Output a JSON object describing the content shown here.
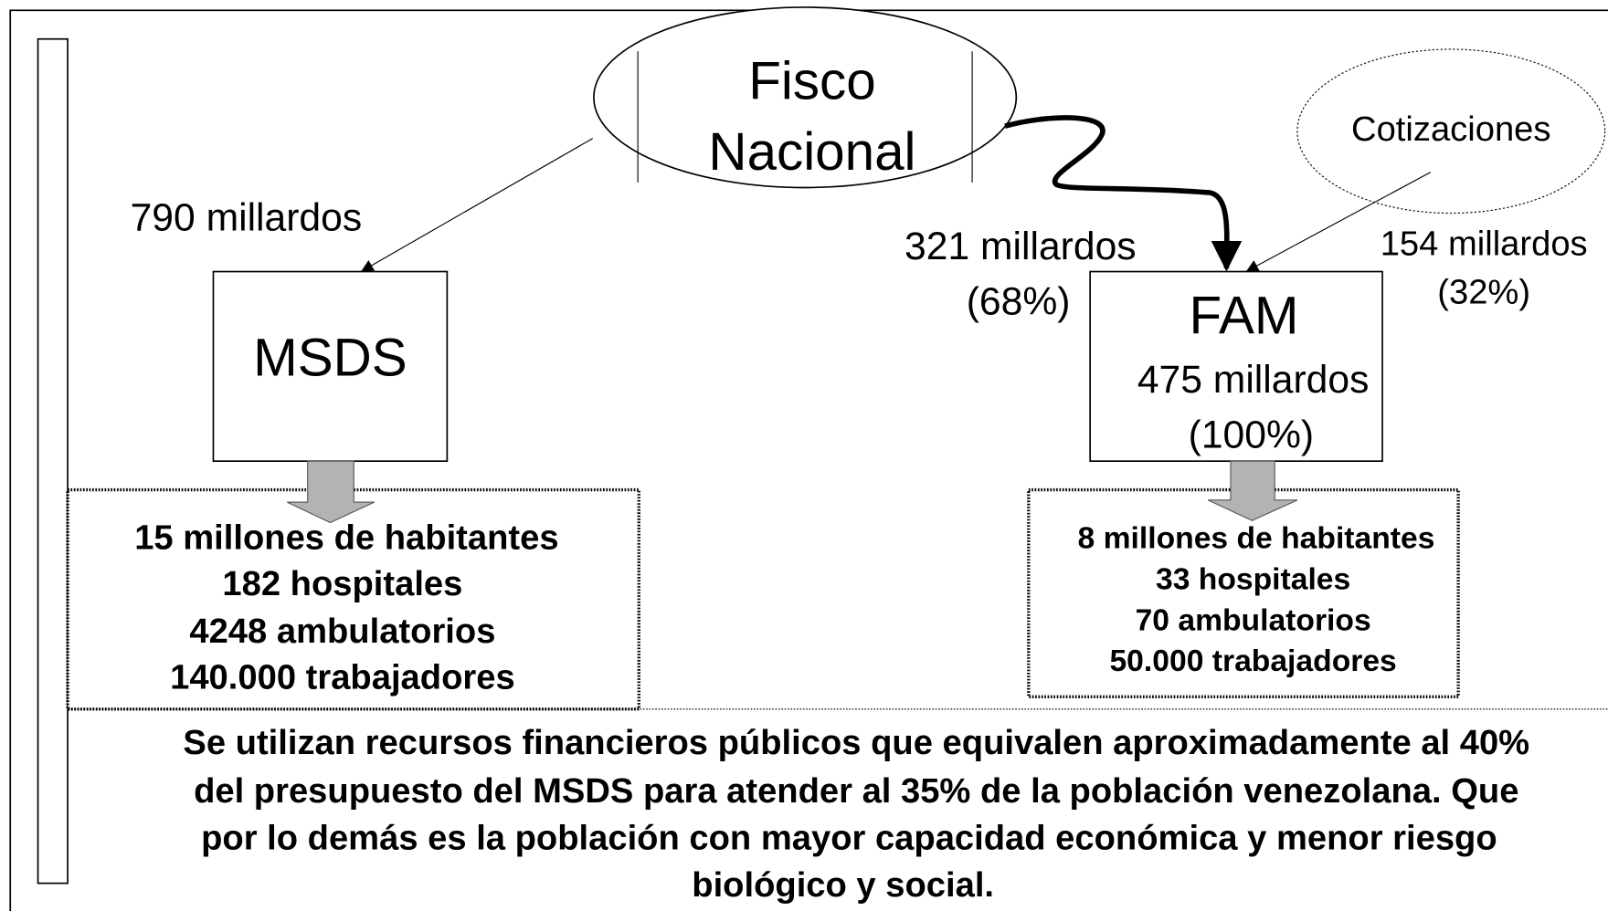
{
  "nodes": {
    "fisco": {
      "lines": [
        "Fisco",
        "Nacional"
      ]
    },
    "cotizaciones": {
      "label": "Cotizaciones"
    },
    "msds": {
      "label": "MSDS"
    },
    "fam": {
      "label": "FAM",
      "lines": [
        "475 millardos",
        "(100%)"
      ]
    }
  },
  "edges": {
    "fisco_msds": {
      "lines": [
        "790 millardos"
      ]
    },
    "fisco_fam": {
      "lines": [
        "321 millardos",
        "(68%)"
      ]
    },
    "cotizaciones_fam": {
      "lines": [
        "154 millardos",
        "(32%)"
      ]
    }
  },
  "msds_stats": {
    "lines": [
      "15 millones de habitantes",
      "182 hospitales",
      "4248 ambulatorios",
      "140.000 trabajadores"
    ]
  },
  "fam_stats": {
    "lines": [
      "8 millones de habitantes",
      "33 hospitales",
      "70 ambulatorios",
      "50.000 trabajadores"
    ]
  },
  "footer": {
    "lines": [
      "Se utilizan recursos financieros públicos que equivalen aproximadamente al 40%",
      "del presupuesto del MSDS para atender al 35% de la población venezolana. Que",
      "por lo demás es la población con mayor capacidad económica y menor riesgo",
      "biológico y social."
    ]
  }
}
